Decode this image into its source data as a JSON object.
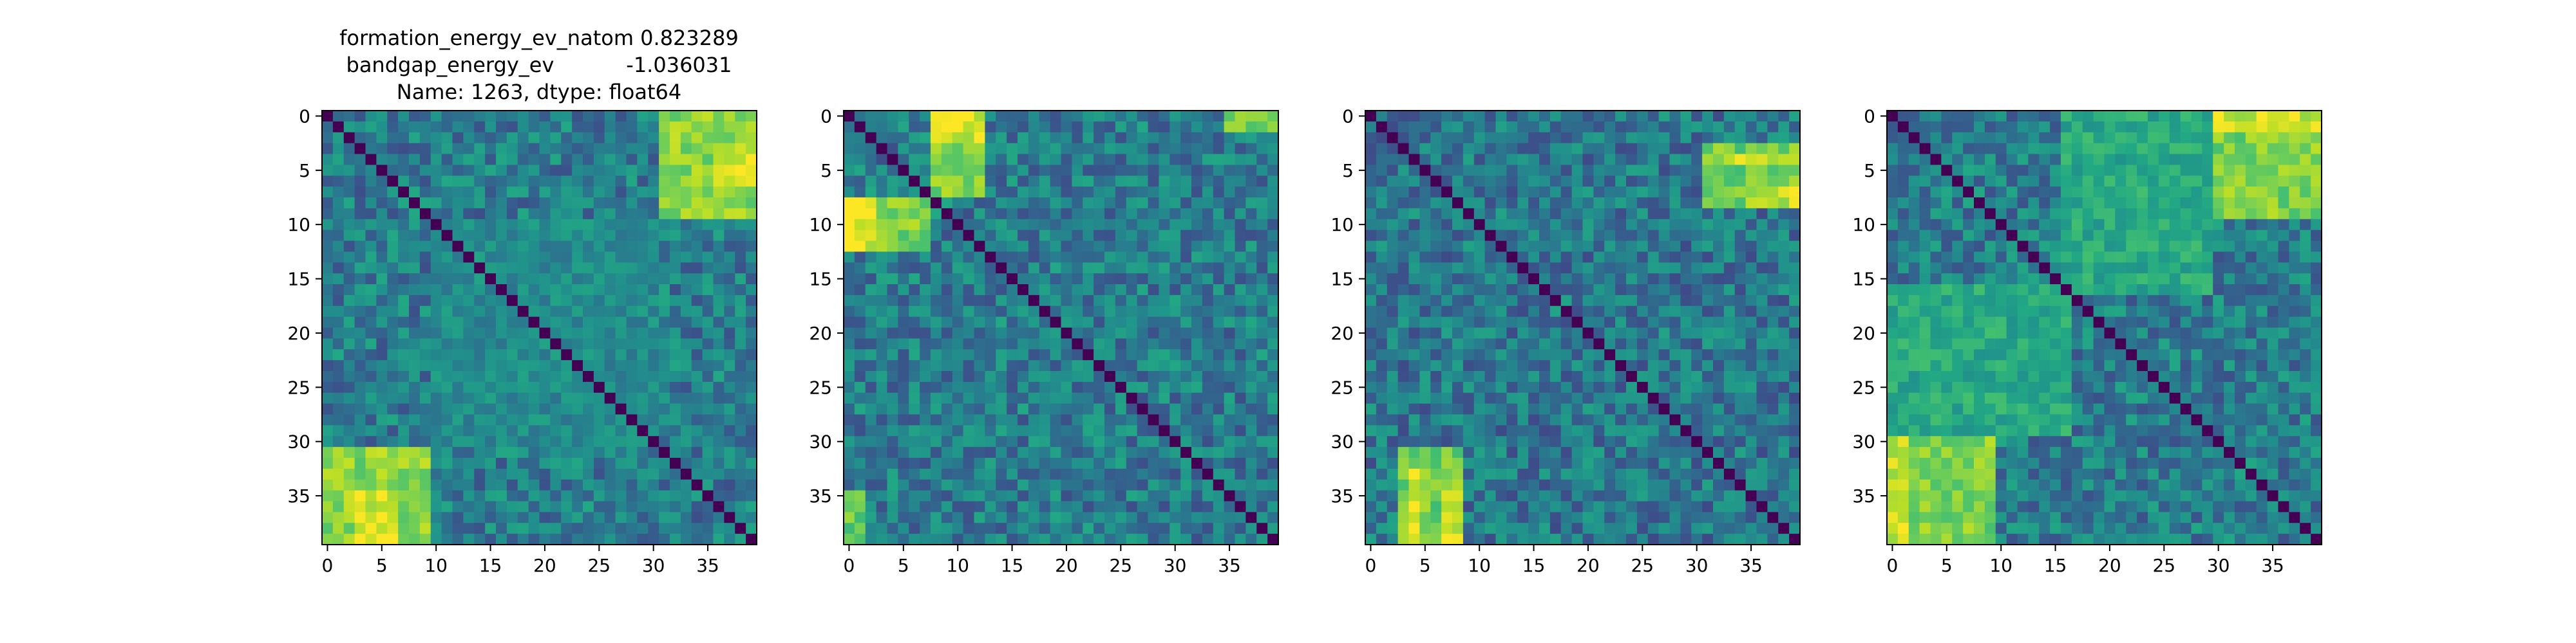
{
  "figure": {
    "title_lines": [
      "formation_energy_ev_natom    0.823289",
      "bandgap_energy_ev           -1.036031",
      "Name: 1263, dtype: float64"
    ]
  },
  "chart_data": [
    {
      "type": "heatmap",
      "colormap": "viridis",
      "size": 40,
      "vmin": 0,
      "vmax": 1,
      "xticks": [
        0,
        5,
        10,
        15,
        20,
        25,
        30,
        35
      ],
      "yticks": [
        0,
        5,
        10,
        15,
        20,
        25,
        30,
        35
      ],
      "diagonal": 0,
      "blocks": [
        {
          "rows": [
            0,
            9
          ],
          "cols": [
            31,
            39
          ],
          "value": 0.82
        },
        {
          "rows": [
            3,
            6
          ],
          "cols": [
            36,
            39
          ],
          "value": 0.95
        },
        {
          "rows": [
            31,
            39
          ],
          "cols": [
            0,
            9
          ],
          "value": 0.82
        },
        {
          "rows": [
            35,
            39
          ],
          "cols": [
            3,
            6
          ],
          "value": 0.95
        },
        {
          "rows": [
            10,
            30
          ],
          "cols": [
            10,
            30
          ],
          "value": 0.48
        }
      ],
      "base": 0.42,
      "seed": 11
    },
    {
      "type": "heatmap",
      "colormap": "viridis",
      "size": 40,
      "vmin": 0,
      "vmax": 1,
      "xticks": [
        0,
        5,
        10,
        15,
        20,
        25,
        30,
        35
      ],
      "yticks": [
        0,
        5,
        10,
        15,
        20,
        25,
        30,
        35
      ],
      "diagonal": 0,
      "blocks": [
        {
          "rows": [
            0,
            7
          ],
          "cols": [
            8,
            12
          ],
          "value": 0.8
        },
        {
          "rows": [
            8,
            12
          ],
          "cols": [
            0,
            7
          ],
          "value": 0.8
        },
        {
          "rows": [
            0,
            2
          ],
          "cols": [
            8,
            12
          ],
          "value": 0.95
        },
        {
          "rows": [
            8,
            12
          ],
          "cols": [
            0,
            2
          ],
          "value": 0.95
        },
        {
          "rows": [
            0,
            1
          ],
          "cols": [
            35,
            39
          ],
          "value": 0.8
        },
        {
          "rows": [
            35,
            39
          ],
          "cols": [
            0,
            1
          ],
          "value": 0.75
        }
      ],
      "base": 0.42,
      "seed": 23
    },
    {
      "type": "heatmap",
      "colormap": "viridis",
      "size": 40,
      "vmin": 0,
      "vmax": 1,
      "xticks": [
        0,
        5,
        10,
        15,
        20,
        25,
        30,
        35
      ],
      "yticks": [
        0,
        5,
        10,
        15,
        20,
        25,
        30,
        35
      ],
      "diagonal": 0,
      "blocks": [
        {
          "rows": [
            3,
            8
          ],
          "cols": [
            31,
            39
          ],
          "value": 0.78
        },
        {
          "rows": [
            4,
            4
          ],
          "cols": [
            33,
            39
          ],
          "value": 0.95
        },
        {
          "rows": [
            7,
            8
          ],
          "cols": [
            35,
            39
          ],
          "value": 0.9
        },
        {
          "rows": [
            31,
            39
          ],
          "cols": [
            3,
            8
          ],
          "value": 0.78
        },
        {
          "rows": [
            33,
            39
          ],
          "cols": [
            4,
            4
          ],
          "value": 0.95
        },
        {
          "rows": [
            35,
            39
          ],
          "cols": [
            7,
            8
          ],
          "value": 0.9
        }
      ],
      "base": 0.4,
      "seed": 37
    },
    {
      "type": "heatmap",
      "colormap": "viridis",
      "size": 40,
      "vmin": 0,
      "vmax": 1,
      "xticks": [
        0,
        5,
        10,
        15,
        20,
        25,
        30,
        35
      ],
      "yticks": [
        0,
        5,
        10,
        15,
        20,
        25,
        30,
        35
      ],
      "diagonal": 0,
      "blocks": [
        {
          "rows": [
            0,
            9
          ],
          "cols": [
            30,
            39
          ],
          "value": 0.8
        },
        {
          "rows": [
            0,
            1
          ],
          "cols": [
            30,
            39
          ],
          "value": 0.92
        },
        {
          "rows": [
            30,
            39
          ],
          "cols": [
            0,
            9
          ],
          "value": 0.8
        },
        {
          "rows": [
            30,
            39
          ],
          "cols": [
            0,
            1
          ],
          "value": 0.92
        },
        {
          "rows": [
            16,
            29
          ],
          "cols": [
            0,
            16
          ],
          "value": 0.6
        },
        {
          "rows": [
            0,
            16
          ],
          "cols": [
            16,
            29
          ],
          "value": 0.6
        }
      ],
      "base": 0.42,
      "seed": 53
    }
  ]
}
